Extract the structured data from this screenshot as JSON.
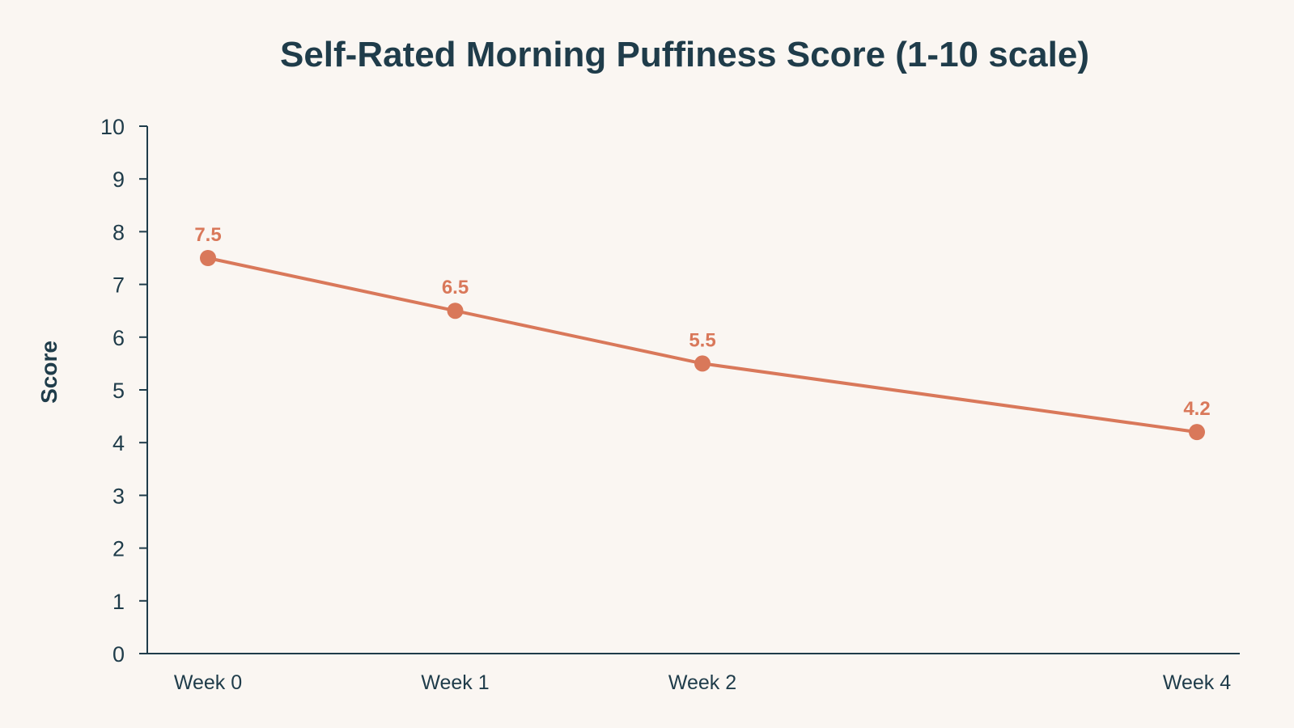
{
  "chart_data": {
    "type": "line",
    "title": "Self-Rated Morning Puffiness Score (1-10 scale)",
    "xlabel": "",
    "ylabel": "Score",
    "categories": [
      "Week 0",
      "Week 1",
      "Week 2",
      "Week 4"
    ],
    "x": [
      0,
      1,
      2,
      4
    ],
    "values": [
      7.5,
      6.5,
      5.5,
      4.2
    ],
    "data_labels": [
      "7.5",
      "6.5",
      "5.5",
      "4.2"
    ],
    "ylim": [
      0,
      10
    ],
    "yticks": [
      0,
      1,
      2,
      3,
      4,
      5,
      6,
      7,
      8,
      9,
      10
    ],
    "grid": false,
    "legend": "none",
    "colors": {
      "line": "#d9785a",
      "axis": "#1f3c4a",
      "text": "#1f3c4a",
      "background": "#faf6f2"
    }
  }
}
